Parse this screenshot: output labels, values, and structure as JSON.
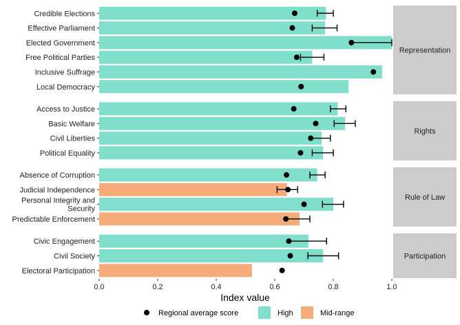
{
  "chart_data": {
    "type": "bar",
    "orientation": "horizontal",
    "xlabel": "Index value",
    "xlim": [
      0,
      1
    ],
    "xticks": [
      0,
      0.2,
      0.4,
      0.6,
      0.8,
      1
    ],
    "xtick_labels": [
      "0.0",
      "0.2",
      "0.4",
      "0.6",
      "0.8",
      "1.0"
    ],
    "colors": {
      "High": "#7fdfcb",
      "Mid-range": "#f5ac78",
      "point": "#000000",
      "strip": "#cccccc"
    },
    "legend": {
      "position": "bottom",
      "point_label": "Regional average score",
      "fill_items": [
        "High",
        "Mid-range"
      ]
    },
    "panels": [
      {
        "name": "Representation",
        "rows": [
          {
            "label": "Credible Elections",
            "value": 0.775,
            "category": "High",
            "regional_avg": 0.668,
            "err_low": 0.745,
            "err_high": 0.8
          },
          {
            "label": "Effective Parliament",
            "value": 0.772,
            "category": "High",
            "regional_avg": 0.66,
            "err_low": 0.728,
            "err_high": 0.813
          },
          {
            "label": "Elected Government",
            "value": 1.0,
            "category": "High",
            "regional_avg": 0.862,
            "err_low": 0.862,
            "err_high": 1.0
          },
          {
            "label": "Free Political Parties",
            "value": 0.728,
            "category": "High",
            "regional_avg": 0.675,
            "err_low": 0.688,
            "err_high": 0.768
          },
          {
            "label": "Inclusive Suffrage",
            "value": 0.967,
            "category": "High",
            "regional_avg": 0.937,
            "err_low": null,
            "err_high": null
          },
          {
            "label": "Local Democracy",
            "value": 0.852,
            "category": "High",
            "regional_avg": 0.69,
            "err_low": null,
            "err_high": null
          }
        ]
      },
      {
        "name": "Rights",
        "rows": [
          {
            "label": "Access to Justice",
            "value": 0.815,
            "category": "High",
            "regional_avg": 0.665,
            "err_low": 0.79,
            "err_high": 0.843
          },
          {
            "label": "Basic Welfare",
            "value": 0.84,
            "category": "High",
            "regional_avg": 0.74,
            "err_low": 0.803,
            "err_high": 0.875
          },
          {
            "label": "Civil Liberties",
            "value": 0.76,
            "category": "High",
            "regional_avg": 0.723,
            "err_low": 0.723,
            "err_high": 0.79
          },
          {
            "label": "Political Equality",
            "value": 0.765,
            "category": "High",
            "regional_avg": 0.688,
            "err_low": 0.728,
            "err_high": 0.8
          }
        ]
      },
      {
        "name": "Rule of Law",
        "rows": [
          {
            "label": "Absence of Corruption",
            "value": 0.745,
            "category": "High",
            "regional_avg": 0.64,
            "err_low": 0.72,
            "err_high": 0.772
          },
          {
            "label": "Judicial Independence",
            "value": 0.642,
            "category": "Mid-range",
            "regional_avg": 0.645,
            "err_low": 0.608,
            "err_high": 0.678
          },
          {
            "label": "Personal Integrity and Security",
            "value": 0.8,
            "category": "High",
            "regional_avg": 0.7,
            "err_low": 0.763,
            "err_high": 0.835
          },
          {
            "label": "Predictable Enforcement",
            "value": 0.685,
            "category": "Mid-range",
            "regional_avg": 0.638,
            "err_low": 0.638,
            "err_high": 0.72
          }
        ]
      },
      {
        "name": "Participation",
        "rows": [
          {
            "label": "Civic Engagement",
            "value": 0.715,
            "category": "High",
            "regional_avg": 0.648,
            "err_low": 0.648,
            "err_high": 0.777
          },
          {
            "label": "Civil Society",
            "value": 0.765,
            "category": "High",
            "regional_avg": 0.653,
            "err_low": 0.713,
            "err_high": 0.818
          },
          {
            "label": "Electoral Participation",
            "value": 0.522,
            "category": "Mid-range",
            "regional_avg": 0.625,
            "err_low": null,
            "err_high": null
          }
        ]
      }
    ]
  }
}
